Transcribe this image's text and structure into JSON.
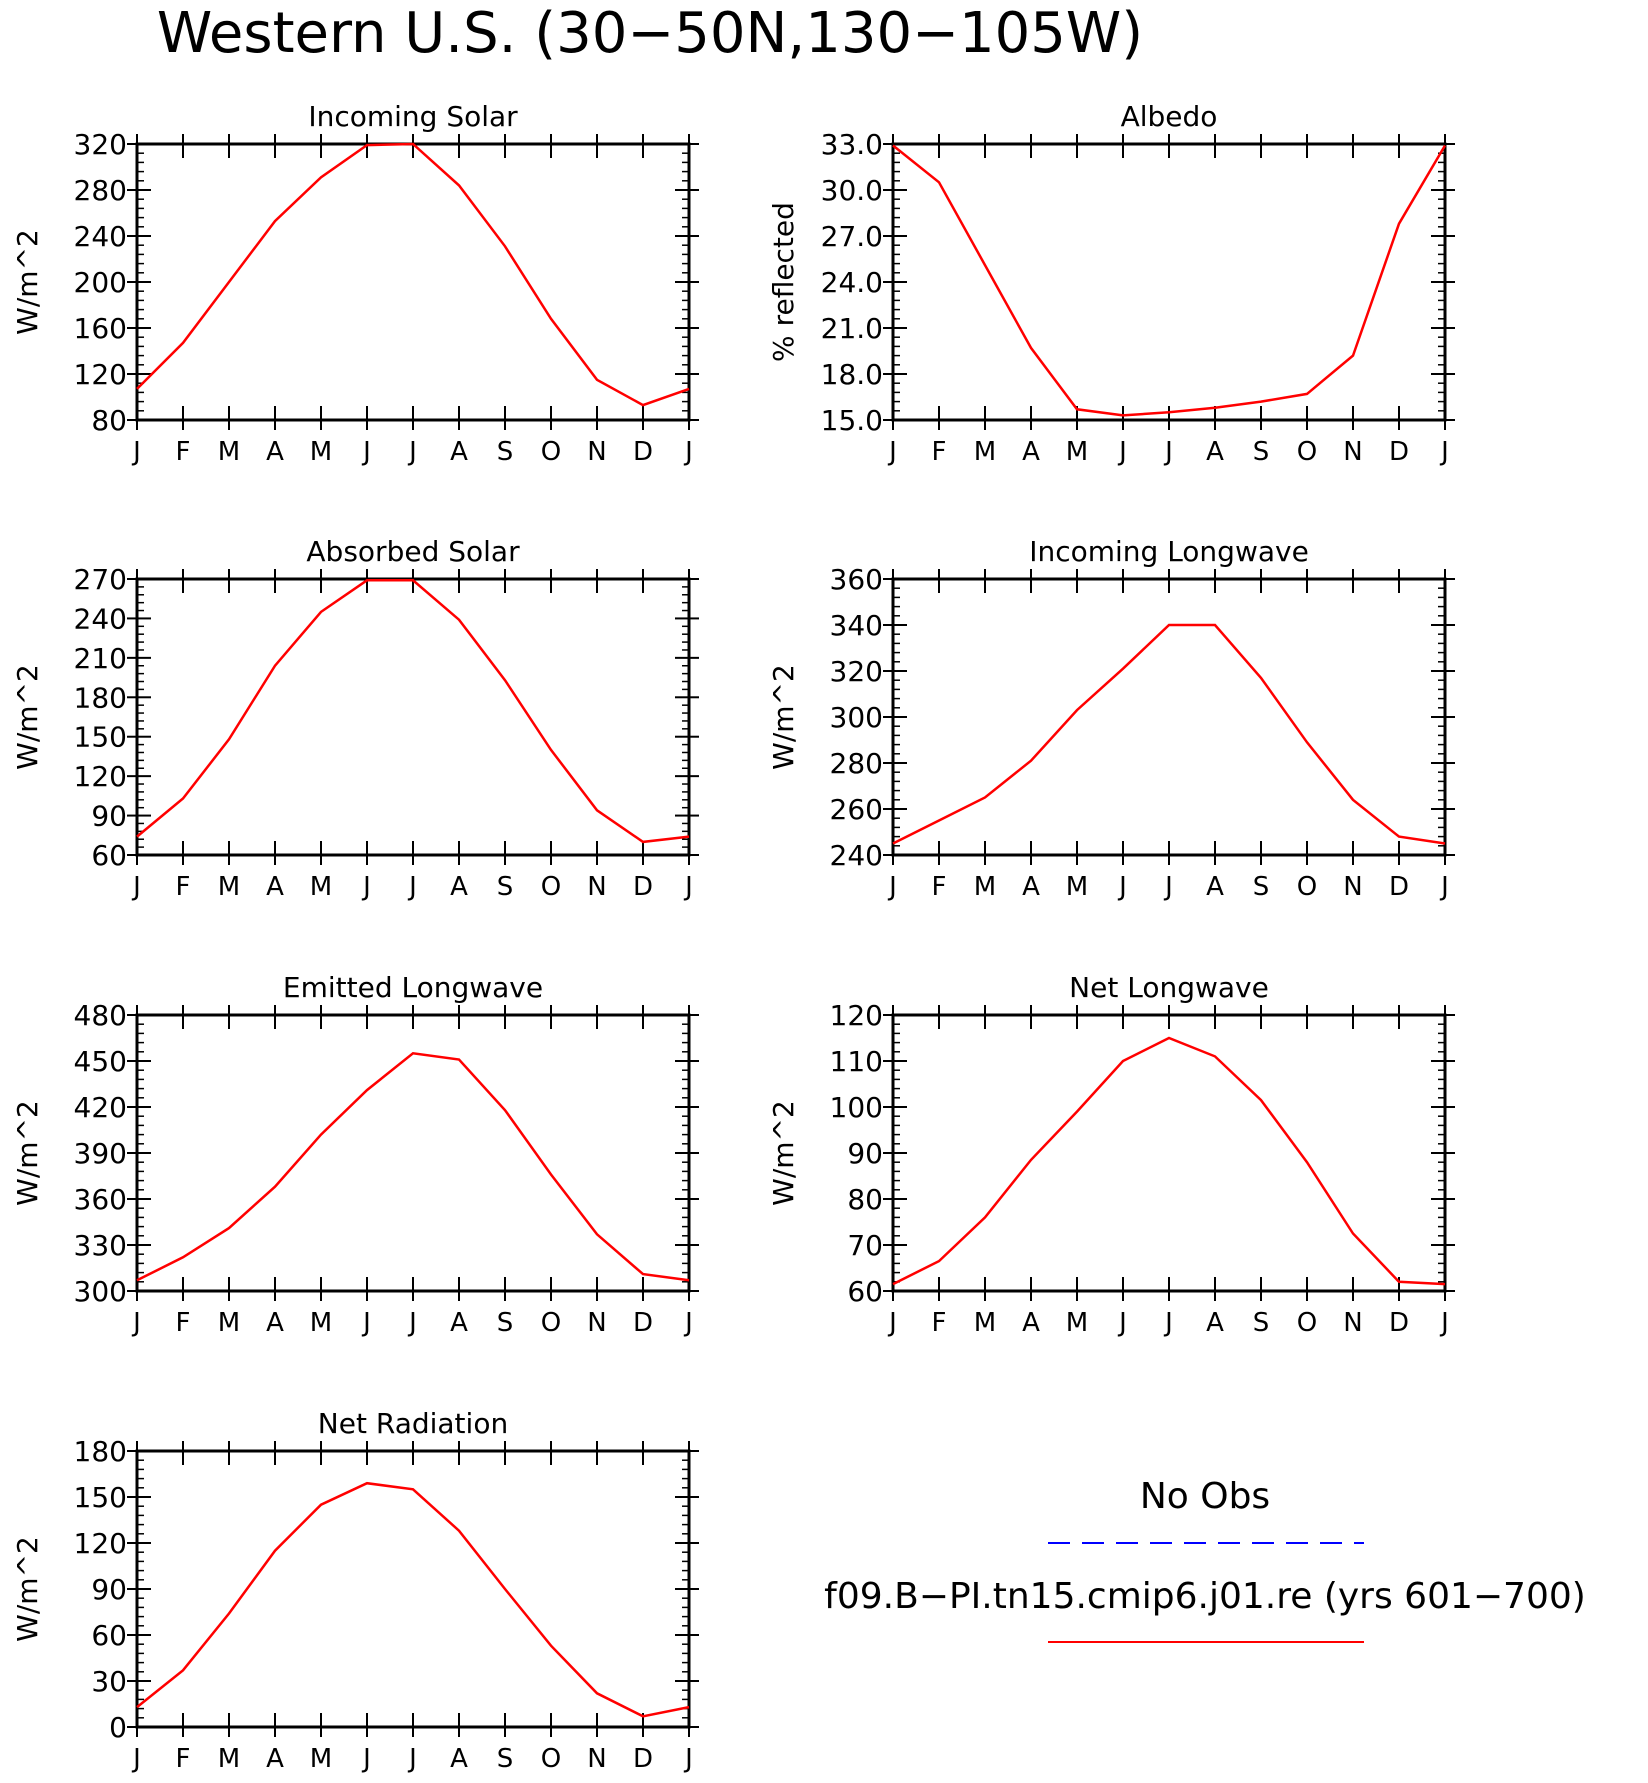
{
  "title": "Western U.S. (30−50N,130−105W)",
  "colors": {
    "model": "#ff0000",
    "obs": "#0000ff",
    "axes": "#000000"
  },
  "legend": {
    "obs_label": "No Obs",
    "model_label": "f09.B−PI.tn15.cmip6.j01.re (yrs 601−700)"
  },
  "chart_data": [
    {
      "type": "line",
      "title": "Incoming Solar",
      "ylabel": "W/m^2",
      "categories": [
        "J",
        "F",
        "M",
        "A",
        "M",
        "J",
        "J",
        "A",
        "S",
        "O",
        "N",
        "D",
        "J"
      ],
      "ylim": [
        80,
        320
      ],
      "yticks": [
        "80",
        "120",
        "160",
        "200",
        "240",
        "280",
        "320"
      ],
      "series": [
        {
          "values": [
            107,
            147,
            200,
            253,
            291,
            319,
            320,
            284,
            231,
            168,
            115,
            93,
            107
          ]
        }
      ]
    },
    {
      "type": "line",
      "title": "Albedo",
      "ylabel": "% reflected",
      "categories": [
        "J",
        "F",
        "M",
        "A",
        "M",
        "J",
        "J",
        "A",
        "S",
        "O",
        "N",
        "D",
        "J"
      ],
      "ylim": [
        15,
        33
      ],
      "yticks": [
        "15.0",
        "18.0",
        "21.0",
        "24.0",
        "27.0",
        "30.0",
        "33.0"
      ],
      "series": [
        {
          "values": [
            32.9,
            30.5,
            25.1,
            19.7,
            15.7,
            15.3,
            15.5,
            15.8,
            16.2,
            16.7,
            19.2,
            27.8,
            32.9
          ]
        }
      ]
    },
    {
      "type": "line",
      "title": "Absorbed Solar",
      "ylabel": "W/m^2",
      "categories": [
        "J",
        "F",
        "M",
        "A",
        "M",
        "J",
        "J",
        "A",
        "S",
        "O",
        "N",
        "D",
        "J"
      ],
      "ylim": [
        60,
        270
      ],
      "yticks": [
        "60",
        "90",
        "120",
        "150",
        "180",
        "210",
        "240",
        "270"
      ],
      "series": [
        {
          "values": [
            74,
            103,
            148,
            204,
            245,
            269,
            269,
            239,
            193,
            140,
            94,
            70,
            74
          ]
        }
      ]
    },
    {
      "type": "line",
      "title": "Incoming Longwave",
      "ylabel": "W/m^2",
      "categories": [
        "J",
        "F",
        "M",
        "A",
        "M",
        "J",
        "J",
        "A",
        "S",
        "O",
        "N",
        "D",
        "J"
      ],
      "ylim": [
        240,
        360
      ],
      "yticks": [
        "240",
        "260",
        "280",
        "300",
        "320",
        "340",
        "360"
      ],
      "series": [
        {
          "values": [
            245,
            255,
            265,
            281,
            303,
            321,
            340,
            340,
            317,
            289,
            264,
            248,
            245
          ]
        }
      ]
    },
    {
      "type": "line",
      "title": "Emitted Longwave",
      "ylabel": "W/m^2",
      "categories": [
        "J",
        "F",
        "M",
        "A",
        "M",
        "J",
        "J",
        "A",
        "S",
        "O",
        "N",
        "D",
        "J"
      ],
      "ylim": [
        300,
        480
      ],
      "yticks": [
        "300",
        "330",
        "360",
        "390",
        "420",
        "450",
        "480"
      ],
      "series": [
        {
          "values": [
            307,
            322,
            341,
            368,
            402,
            431,
            455,
            451,
            418,
            376,
            337,
            311,
            307
          ]
        }
      ]
    },
    {
      "type": "line",
      "title": "Net Longwave",
      "ylabel": "W/m^2",
      "categories": [
        "J",
        "F",
        "M",
        "A",
        "M",
        "J",
        "J",
        "A",
        "S",
        "O",
        "N",
        "D",
        "J"
      ],
      "ylim": [
        60,
        120
      ],
      "yticks": [
        "60",
        "70",
        "80",
        "90",
        "100",
        "110",
        "120"
      ],
      "series": [
        {
          "values": [
            61.5,
            66.5,
            76,
            88.5,
            99,
            110,
            115,
            111,
            101.5,
            88,
            72.5,
            62,
            61.5
          ]
        }
      ]
    },
    {
      "type": "line",
      "title": "Net Radiation",
      "ylabel": "W/m^2",
      "categories": [
        "J",
        "F",
        "M",
        "A",
        "M",
        "J",
        "J",
        "A",
        "S",
        "O",
        "N",
        "D",
        "J"
      ],
      "ylim": [
        0,
        180
      ],
      "yticks": [
        "0",
        "30",
        "60",
        "90",
        "120",
        "150",
        "180"
      ],
      "series": [
        {
          "values": [
            13,
            37,
            74,
            115,
            145,
            159,
            155,
            128,
            90,
            53,
            22,
            7,
            13
          ]
        }
      ]
    }
  ]
}
